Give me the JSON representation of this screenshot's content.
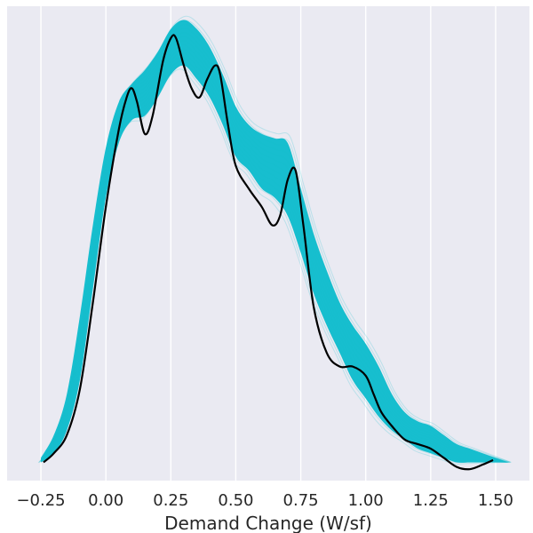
{
  "chart_data": {
    "type": "line",
    "title": "",
    "xlabel": "Demand Change (W/sf)",
    "ylabel": "",
    "xlim": [
      -0.38,
      1.63
    ],
    "ylim": [
      -0.04,
      1.0
    ],
    "xticks": [
      -0.25,
      0.0,
      0.25,
      0.5,
      0.75,
      1.0,
      1.25,
      1.5
    ],
    "xtick_labels": [
      "−0.25",
      "0.00",
      "0.25",
      "0.50",
      "0.75",
      "1.00",
      "1.25",
      "1.50"
    ],
    "yticks_visible": false,
    "grid": "vertical",
    "colors": {
      "background": "#eaeaf2",
      "grid": "#ffffff",
      "ensemble": "#17becf",
      "main_line": "#000000"
    },
    "series": [
      {
        "role": "ensemble-envelope",
        "x": [
          -0.25,
          -0.2,
          -0.15,
          -0.1,
          -0.05,
          0.0,
          0.05,
          0.1,
          0.15,
          0.2,
          0.25,
          0.3,
          0.35,
          0.4,
          0.45,
          0.5,
          0.55,
          0.6,
          0.65,
          0.7,
          0.75,
          0.8,
          0.85,
          0.9,
          0.95,
          1.0,
          1.05,
          1.1,
          1.15,
          1.2,
          1.25,
          1.3,
          1.35,
          1.4,
          1.45,
          1.5,
          1.55
        ],
        "upper": [
          0.01,
          0.06,
          0.15,
          0.32,
          0.52,
          0.69,
          0.79,
          0.83,
          0.86,
          0.9,
          0.95,
          0.97,
          0.95,
          0.91,
          0.85,
          0.78,
          0.74,
          0.72,
          0.71,
          0.7,
          0.6,
          0.5,
          0.42,
          0.35,
          0.3,
          0.26,
          0.21,
          0.15,
          0.11,
          0.09,
          0.08,
          0.06,
          0.04,
          0.03,
          0.02,
          0.01,
          0.0
        ],
        "lower": [
          0.0,
          0.02,
          0.07,
          0.18,
          0.38,
          0.58,
          0.7,
          0.75,
          0.76,
          0.8,
          0.85,
          0.87,
          0.84,
          0.8,
          0.74,
          0.67,
          0.64,
          0.6,
          0.58,
          0.54,
          0.46,
          0.37,
          0.3,
          0.24,
          0.18,
          0.14,
          0.1,
          0.07,
          0.05,
          0.03,
          0.02,
          0.01,
          0.0,
          0.0,
          0.0,
          0.0,
          0.0
        ]
      },
      {
        "role": "main-curve",
        "x": [
          -0.24,
          -0.2,
          -0.15,
          -0.1,
          -0.05,
          0.0,
          0.05,
          0.08,
          0.1,
          0.12,
          0.15,
          0.18,
          0.22,
          0.25,
          0.27,
          0.3,
          0.33,
          0.36,
          0.39,
          0.42,
          0.44,
          0.47,
          0.5,
          0.55,
          0.6,
          0.64,
          0.67,
          0.7,
          0.73,
          0.76,
          0.8,
          0.85,
          0.9,
          0.95,
          1.0,
          1.03,
          1.06,
          1.1,
          1.15,
          1.2,
          1.25,
          1.3,
          1.35,
          1.4,
          1.45,
          1.49
        ],
        "y": [
          0.0,
          0.02,
          0.06,
          0.16,
          0.35,
          0.56,
          0.73,
          0.8,
          0.82,
          0.79,
          0.72,
          0.76,
          0.88,
          0.93,
          0.93,
          0.87,
          0.82,
          0.8,
          0.84,
          0.87,
          0.85,
          0.74,
          0.65,
          0.6,
          0.56,
          0.52,
          0.54,
          0.62,
          0.64,
          0.52,
          0.34,
          0.24,
          0.21,
          0.21,
          0.19,
          0.15,
          0.11,
          0.08,
          0.05,
          0.04,
          0.03,
          0.01,
          -0.01,
          -0.015,
          -0.005,
          0.005
        ]
      }
    ]
  }
}
